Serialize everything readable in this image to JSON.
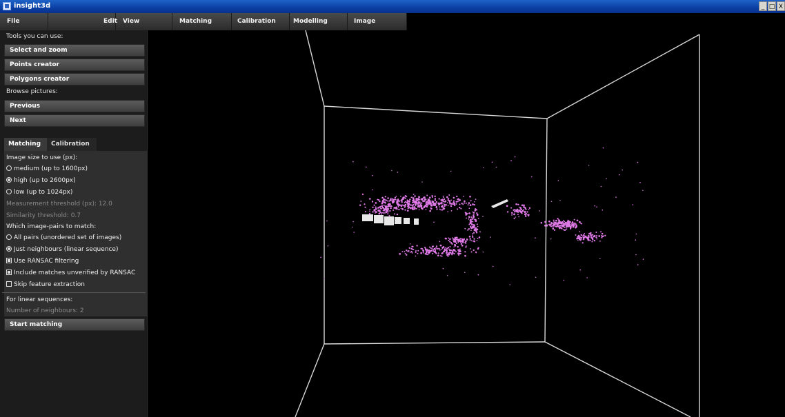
{
  "window": {
    "title": "insight3d",
    "controls": [
      "_",
      "□",
      "X"
    ]
  },
  "menu": [
    "File",
    "Edit",
    "View",
    "Matching",
    "Calibration",
    "Modelling",
    "Image"
  ],
  "side": {
    "tools_heading": "Tools you can use:",
    "tools": [
      "Select and zoom",
      "Points creator",
      "Polygons creator"
    ],
    "browse_heading": "Browse pictures:",
    "browse": [
      "Previous",
      "Next"
    ],
    "tabs": [
      "Matching",
      "Calibration"
    ],
    "options": {
      "size_heading": "Image size to use (px):",
      "size_medium": "medium (up to 1600px)",
      "size_high": "high (up to 2600px)",
      "size_low": "low (up to 1024px)",
      "measurement": "Measurement threshold (px): 12.0",
      "similarity": "Similarity threshold: 0.7",
      "pairs_heading": "Which image-pairs to match:",
      "all_pairs": "All pairs (unordered set of images)",
      "neighbours": "Just neighbours (linear sequence)",
      "ransac": "Use RANSAC filtering",
      "include_unverified": "Include matches unverified by RANSAC",
      "skip_extraction": "Skip feature extraction",
      "linear_heading": "For linear sequences:",
      "num_neighbours": "Number of neighbours: 2",
      "start": "Start matching"
    }
  },
  "colors": {
    "points": "#e07be8",
    "cameras": "#e8e8e8",
    "box_lines": "#d8d8d8"
  }
}
